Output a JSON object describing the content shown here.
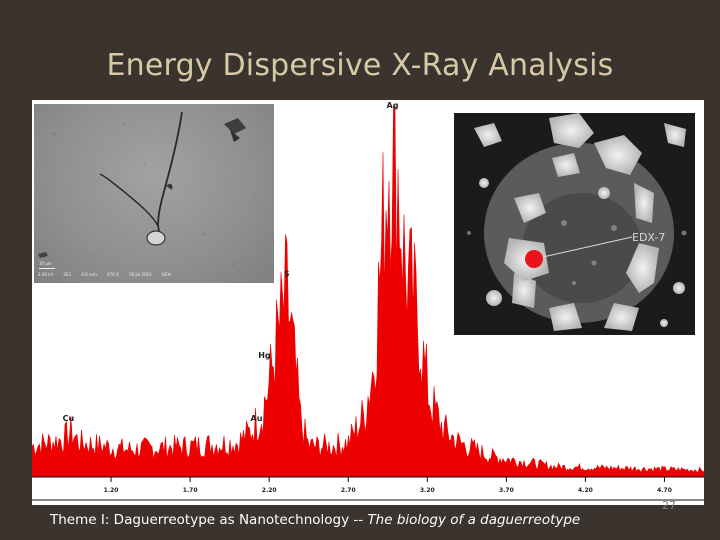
{
  "slide": {
    "title": "Energy Dispersive X-Ray Analysis",
    "footer_main": "Theme I: Daguerreotype as Nanotechnology -- ",
    "footer_italic": "The biology of a daguerreotype",
    "slide_number": "27"
  },
  "sem_left": {
    "scale_label": "10 µm",
    "caption": [
      "2.00 kV",
      "SE2",
      "4.6 mm",
      "476 X",
      "30 Jul 2012",
      "GEH"
    ]
  },
  "sem_right": {
    "label": "EDX-7",
    "marker_color": "#e8141b"
  },
  "chart_data": {
    "type": "area",
    "color": "#ee0000",
    "x_ticks": [
      "1.20",
      "1.70",
      "2.20",
      "2.70",
      "3.20",
      "3.70",
      "4.20",
      "4.70"
    ],
    "xlim": [
      0.7,
      4.95
    ],
    "ylim": [
      0,
      100
    ],
    "baseline": 9,
    "peaks": [
      {
        "label": "Cu",
        "x": 0.93,
        "y": 14
      },
      {
        "label": "Au",
        "x": 2.12,
        "y": 14
      },
      {
        "label": "Hg",
        "x": 2.17,
        "y": 31
      },
      {
        "label": "S",
        "x": 2.31,
        "y": 53
      },
      {
        "label": "Ag",
        "x": 2.98,
        "y": 100
      }
    ],
    "profile": [
      [
        0.7,
        9
      ],
      [
        0.9,
        11
      ],
      [
        0.95,
        13
      ],
      [
        1.0,
        10
      ],
      [
        1.3,
        8
      ],
      [
        1.7,
        9
      ],
      [
        2.0,
        10
      ],
      [
        2.08,
        13
      ],
      [
        2.15,
        18
      ],
      [
        2.2,
        27
      ],
      [
        2.25,
        40
      ],
      [
        2.29,
        48
      ],
      [
        2.31,
        53
      ],
      [
        2.33,
        46
      ],
      [
        2.36,
        33
      ],
      [
        2.4,
        16
      ],
      [
        2.45,
        9
      ],
      [
        2.6,
        9
      ],
      [
        2.7,
        10
      ],
      [
        2.8,
        18
      ],
      [
        2.86,
        32
      ],
      [
        2.9,
        58
      ],
      [
        2.94,
        85
      ],
      [
        2.96,
        96
      ],
      [
        2.98,
        100
      ],
      [
        3.0,
        96
      ],
      [
        3.03,
        78
      ],
      [
        3.06,
        60
      ],
      [
        3.09,
        55
      ],
      [
        3.12,
        50
      ],
      [
        3.15,
        44
      ],
      [
        3.18,
        32
      ],
      [
        3.22,
        22
      ],
      [
        3.3,
        14
      ],
      [
        3.4,
        10
      ],
      [
        3.6,
        6
      ],
      [
        4.0,
        3
      ],
      [
        4.5,
        2.5
      ],
      [
        4.95,
        2
      ]
    ]
  }
}
